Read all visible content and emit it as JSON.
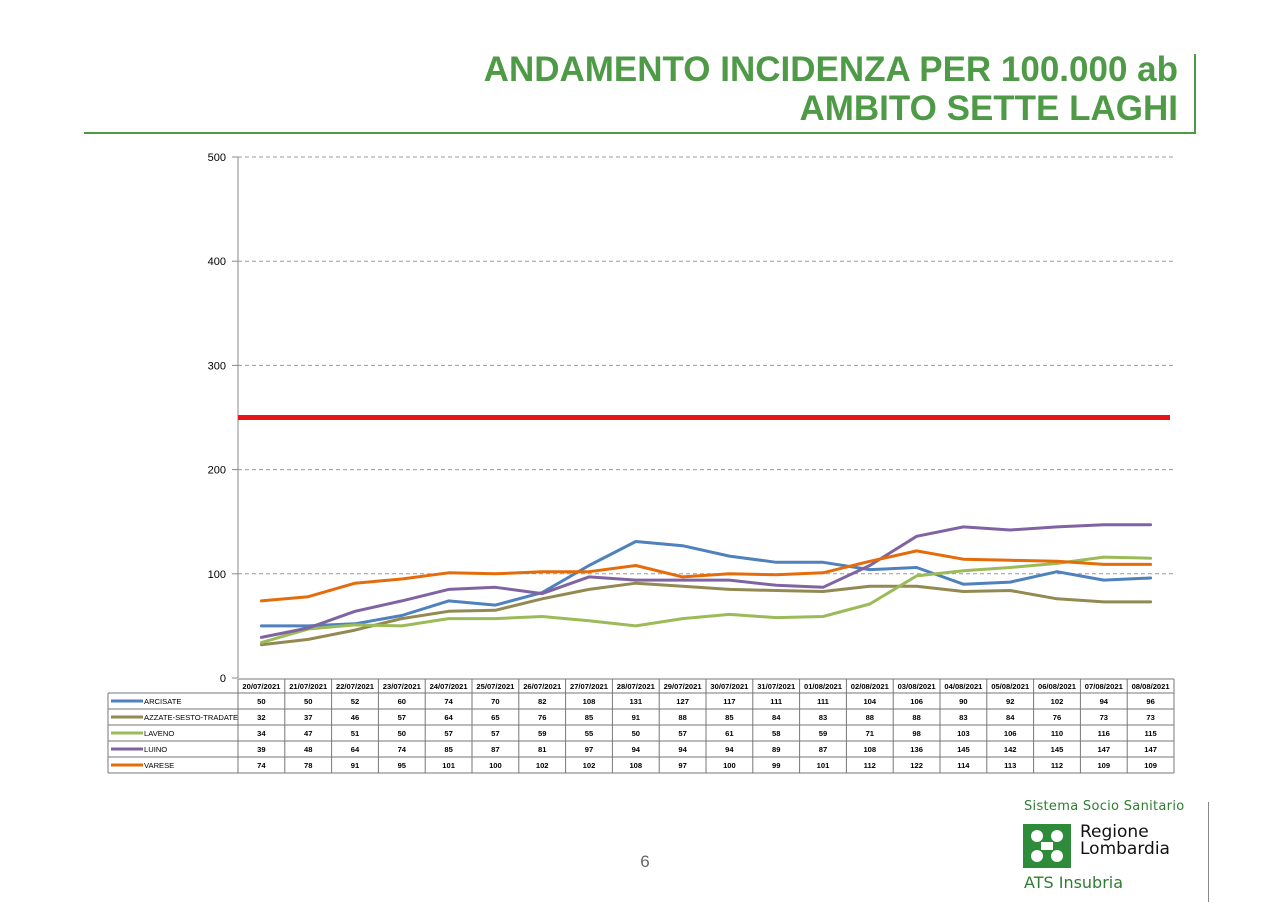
{
  "page": {
    "title_line1": "ANDAMENTO INCIDENZA PER 100.000 ab",
    "title_line2": "AMBITO SETTE LAGHI",
    "page_number": "6"
  },
  "logo": {
    "top_text": "Sistema Socio Sanitario",
    "name_line1": "Regione",
    "name_line2": "Lombardia",
    "ats_text": "ATS Insubria",
    "green": "#2e8b3a"
  },
  "chart_data": {
    "type": "line",
    "title": "",
    "xlabel": "",
    "ylabel": "",
    "ylim": [
      0,
      500
    ],
    "yticks": [
      0,
      100,
      200,
      300,
      400,
      500
    ],
    "grid": "horizontal dashed",
    "legend": "data table below chart",
    "categories": [
      "20/07/2021",
      "21/07/2021",
      "22/07/2021",
      "23/07/2021",
      "24/07/2021",
      "25/07/2021",
      "26/07/2021",
      "27/07/2021",
      "28/07/2021",
      "29/07/2021",
      "30/07/2021",
      "31/07/2021",
      "01/08/2021",
      "02/08/2021",
      "03/08/2021",
      "04/08/2021",
      "05/08/2021",
      "06/08/2021",
      "07/08/2021",
      "08/08/2021"
    ],
    "threshold": {
      "value": 250,
      "color": "#e8141c"
    },
    "series": [
      {
        "name": "ARCISATE",
        "color": "#4f81bd",
        "values": [
          50,
          50,
          52,
          60,
          74,
          70,
          82,
          108,
          131,
          127,
          117,
          111,
          111,
          104,
          106,
          90,
          92,
          102,
          94,
          96
        ]
      },
      {
        "name": "AZZATE-SESTO-TRADATE",
        "color": "#938953",
        "values": [
          32,
          37,
          46,
          57,
          64,
          65,
          76,
          85,
          91,
          88,
          85,
          84,
          83,
          88,
          88,
          83,
          84,
          76,
          73,
          73
        ]
      },
      {
        "name": "LAVENO",
        "color": "#9bbb59",
        "values": [
          34,
          47,
          51,
          50,
          57,
          57,
          59,
          55,
          50,
          57,
          61,
          58,
          59,
          71,
          98,
          103,
          106,
          110,
          116,
          115
        ]
      },
      {
        "name": "LUINO",
        "color": "#8064a2",
        "values": [
          39,
          48,
          64,
          74,
          85,
          87,
          81,
          97,
          94,
          94,
          94,
          89,
          87,
          108,
          136,
          145,
          142,
          145,
          147,
          147
        ]
      },
      {
        "name": "VARESE",
        "color": "#e46c0a",
        "values": [
          74,
          78,
          91,
          95,
          101,
          100,
          102,
          102,
          108,
          97,
          100,
          99,
          101,
          112,
          122,
          114,
          113,
          112,
          109,
          109
        ]
      }
    ]
  }
}
